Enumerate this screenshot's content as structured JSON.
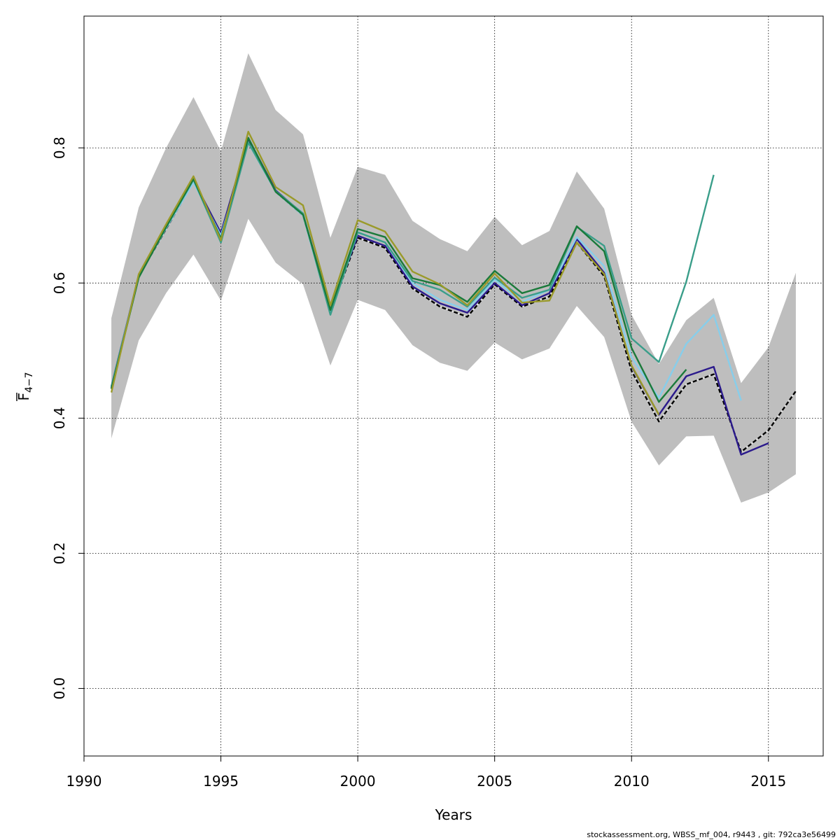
{
  "chart_data": {
    "type": "line",
    "title": "",
    "xlabel": "Years",
    "ylabel_main": "F",
    "ylabel_subscript": "4−7",
    "xlim": [
      1990,
      2017
    ],
    "ylim": [
      -0.1,
      0.995
    ],
    "x_ticks": [
      1990,
      1995,
      2000,
      2005,
      2010,
      2015
    ],
    "y_ticks": [
      0.0,
      0.2,
      0.4,
      0.6,
      0.8
    ],
    "y_tick_labels": [
      "0.0",
      "0.2",
      "0.4",
      "0.6",
      "0.8"
    ],
    "grid": true,
    "confidence_band": {
      "color": "#bebebe",
      "x": [
        1991,
        1992,
        1993,
        1994,
        1995,
        1996,
        1997,
        1998,
        1999,
        2000,
        2001,
        2002,
        2003,
        2004,
        2005,
        2006,
        2007,
        2008,
        2009,
        2010,
        2011,
        2012,
        2013,
        2014,
        2015,
        2016
      ],
      "upper": [
        0.548,
        0.712,
        0.8,
        0.875,
        0.795,
        0.94,
        0.856,
        0.82,
        0.667,
        0.772,
        0.76,
        0.692,
        0.665,
        0.647,
        0.698,
        0.656,
        0.677,
        0.765,
        0.71,
        0.553,
        0.48,
        0.545,
        0.578,
        0.452,
        0.505,
        0.615
      ],
      "lower": [
        0.37,
        0.515,
        0.585,
        0.642,
        0.574,
        0.695,
        0.63,
        0.598,
        0.478,
        0.575,
        0.56,
        0.508,
        0.482,
        0.47,
        0.512,
        0.487,
        0.503,
        0.566,
        0.52,
        0.395,
        0.33,
        0.373,
        0.374,
        0.275,
        0.29,
        0.317
      ]
    },
    "series": [
      {
        "color": "#000000",
        "dashed": true,
        "x": [
          1991,
          1992,
          1993,
          1994,
          1995,
          1996,
          1997,
          1998,
          1999,
          2000,
          2001,
          2002,
          2003,
          2004,
          2005,
          2006,
          2007,
          2008,
          2009,
          2010,
          2011,
          2012,
          2013,
          2014,
          2015,
          2016
        ],
        "values": [
          0.445,
          0.61,
          0.68,
          0.75,
          0.672,
          0.812,
          0.735,
          0.7,
          0.558,
          0.667,
          0.652,
          0.592,
          0.565,
          0.55,
          0.598,
          0.565,
          0.58,
          0.66,
          0.61,
          0.47,
          0.395,
          0.45,
          0.465,
          0.35,
          0.382,
          0.44
        ]
      },
      {
        "color": "#2b1a8c",
        "x": [
          1991,
          1992,
          1993,
          1994,
          1995,
          1996,
          1997,
          1998,
          1999,
          2000,
          2001,
          2002,
          2003,
          2004,
          2005,
          2006,
          2007,
          2008,
          2009,
          2010,
          2011,
          2012,
          2013,
          2014,
          2015
        ],
        "values": [
          0.447,
          0.611,
          0.682,
          0.752,
          0.674,
          0.814,
          0.737,
          0.702,
          0.56,
          0.67,
          0.655,
          0.595,
          0.57,
          0.556,
          0.6,
          0.567,
          0.585,
          0.665,
          0.615,
          0.477,
          0.405,
          0.462,
          0.476,
          0.346,
          0.363
        ]
      },
      {
        "color": "#87ceeb",
        "x": [
          1991,
          1992,
          1993,
          1994,
          1995,
          1996,
          1997,
          1998,
          1999,
          2000,
          2001,
          2002,
          2003,
          2004,
          2005,
          2006,
          2007,
          2008,
          2009,
          2010,
          2011,
          2012,
          2013,
          2014
        ],
        "values": [
          0.446,
          0.61,
          0.681,
          0.749,
          0.67,
          0.808,
          0.735,
          0.7,
          0.554,
          0.675,
          0.66,
          0.6,
          0.575,
          0.56,
          0.605,
          0.572,
          0.59,
          0.668,
          0.625,
          0.49,
          0.43,
          0.51,
          0.553,
          0.426
        ]
      },
      {
        "color": "#3a9e8a",
        "x": [
          1991,
          1992,
          1993,
          1994,
          1995,
          1996,
          1997,
          1998,
          1999,
          2000,
          2001,
          2002,
          2003,
          2004,
          2005,
          2006,
          2007,
          2008,
          2009,
          2010,
          2011,
          2012,
          2013
        ],
        "values": [
          0.446,
          0.609,
          0.682,
          0.753,
          0.66,
          0.808,
          0.736,
          0.703,
          0.553,
          0.675,
          0.66,
          0.603,
          0.59,
          0.565,
          0.608,
          0.578,
          0.59,
          0.683,
          0.655,
          0.518,
          0.483,
          0.602,
          0.76
        ]
      },
      {
        "color": "#1a7a3a",
        "x": [
          1991,
          1992,
          1993,
          1994,
          1995,
          1996,
          1997,
          1998,
          1999,
          2000,
          2001,
          2002,
          2003,
          2004,
          2005,
          2006,
          2007,
          2008,
          2009,
          2010,
          2011,
          2012
        ],
        "values": [
          0.443,
          0.608,
          0.683,
          0.754,
          0.666,
          0.815,
          0.735,
          0.701,
          0.56,
          0.68,
          0.668,
          0.607,
          0.597,
          0.572,
          0.618,
          0.585,
          0.597,
          0.684,
          0.647,
          0.504,
          0.424,
          0.472
        ]
      },
      {
        "color": "#9a9a2a",
        "x": [
          1991,
          1992,
          1993,
          1994,
          1995,
          1996,
          1997,
          1998,
          1999,
          2000,
          2001,
          2002,
          2003,
          2004,
          2005,
          2006,
          2007,
          2008,
          2009,
          2010,
          2011
        ],
        "values": [
          0.438,
          0.613,
          0.687,
          0.758,
          0.663,
          0.824,
          0.742,
          0.715,
          0.567,
          0.693,
          0.676,
          0.617,
          0.598,
          0.567,
          0.614,
          0.571,
          0.574,
          0.66,
          0.613,
          0.478,
          0.405
        ]
      }
    ]
  },
  "footer": {
    "text": "stockassessment.org, WBSS_mf_004, r9443 , git: 792ca3e56499"
  }
}
